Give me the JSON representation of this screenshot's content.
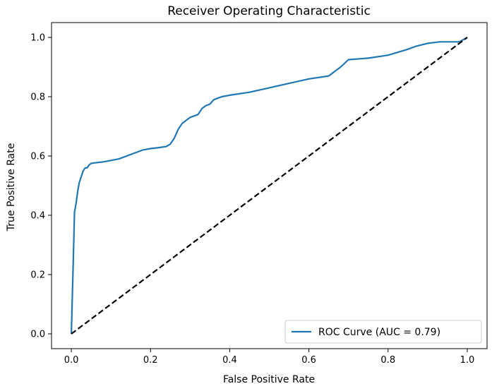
{
  "chart_data": {
    "type": "line",
    "title": "Receiver Operating Characteristic",
    "xlabel": "False Positive Rate",
    "ylabel": "True Positive Rate",
    "xlim": [
      -0.05,
      1.05
    ],
    "ylim": [
      -0.05,
      1.05
    ],
    "xticks": [
      0.0,
      0.2,
      0.4,
      0.6,
      0.8,
      1.0
    ],
    "xtick_labels": [
      "0.0",
      "0.2",
      "0.4",
      "0.6",
      "0.8",
      "1.0"
    ],
    "yticks": [
      0.0,
      0.2,
      0.4,
      0.6,
      0.8,
      1.0
    ],
    "ytick_labels": [
      "0.0",
      "0.2",
      "0.4",
      "0.6",
      "0.8",
      "1.0"
    ],
    "grid": false,
    "legend_position": "lower-right",
    "series": [
      {
        "name": "ROC Curve (AUC = 0.79)",
        "color": "#1f77b4",
        "style": "solid",
        "x": [
          0.0,
          0.002,
          0.005,
          0.008,
          0.012,
          0.016,
          0.02,
          0.025,
          0.03,
          0.035,
          0.04,
          0.045,
          0.05,
          0.06,
          0.08,
          0.1,
          0.12,
          0.15,
          0.18,
          0.2,
          0.22,
          0.24,
          0.25,
          0.26,
          0.27,
          0.28,
          0.3,
          0.32,
          0.33,
          0.34,
          0.35,
          0.36,
          0.38,
          0.4,
          0.45,
          0.5,
          0.55,
          0.6,
          0.65,
          0.68,
          0.7,
          0.75,
          0.8,
          0.85,
          0.87,
          0.9,
          0.93,
          0.98,
          1.0
        ],
        "y": [
          0.0,
          0.1,
          0.25,
          0.41,
          0.44,
          0.48,
          0.51,
          0.53,
          0.55,
          0.56,
          0.56,
          0.57,
          0.575,
          0.577,
          0.58,
          0.585,
          0.59,
          0.605,
          0.62,
          0.625,
          0.628,
          0.632,
          0.64,
          0.66,
          0.69,
          0.71,
          0.73,
          0.74,
          0.76,
          0.77,
          0.775,
          0.79,
          0.8,
          0.805,
          0.815,
          0.83,
          0.845,
          0.86,
          0.87,
          0.9,
          0.925,
          0.93,
          0.94,
          0.96,
          0.97,
          0.98,
          0.985,
          0.985,
          1.0
        ]
      },
      {
        "name": "",
        "color": "#000000",
        "style": "dashed",
        "x": [
          0.0,
          1.0
        ],
        "y": [
          0.0,
          1.0
        ]
      }
    ]
  }
}
